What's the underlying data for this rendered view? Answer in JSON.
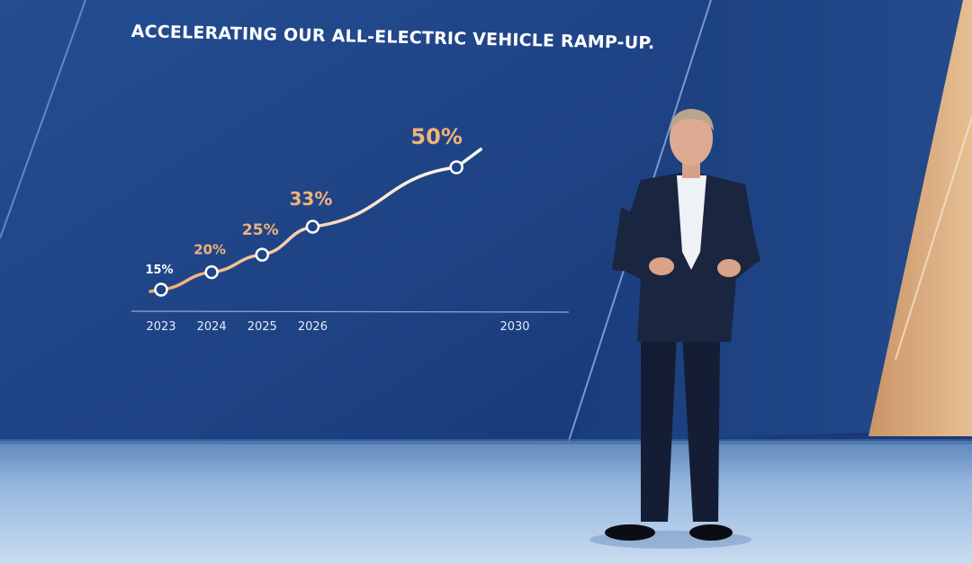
{
  "slide": {
    "title": "ACCELERATING OUR ALL-ELECTRIC VEHICLE RAMP-UP."
  },
  "colors": {
    "screen_blue": "#1f4586",
    "screen_dark": "#16336a",
    "accent_orange": "#f2b27a",
    "curve_white": "#ffffff",
    "stage_floor": "#a8c6e6",
    "wood_panel": "#d9a878"
  },
  "chart_data": {
    "type": "line",
    "title": "ACCELERATING OUR ALL-ELECTRIC VEHICLE RAMP-UP.",
    "x_categories": [
      "2023",
      "2024",
      "2025",
      "2026",
      "2030"
    ],
    "x": [
      2023,
      2024,
      2025,
      2026,
      2030
    ],
    "series": [
      {
        "values": [
          15,
          20,
          25,
          33,
          50
        ],
        "data_labels": [
          "15%",
          "20%",
          "25%",
          "33%",
          "50%"
        ]
      }
    ],
    "xlabel": "",
    "ylabel": "",
    "grid": false,
    "legend": "none"
  }
}
